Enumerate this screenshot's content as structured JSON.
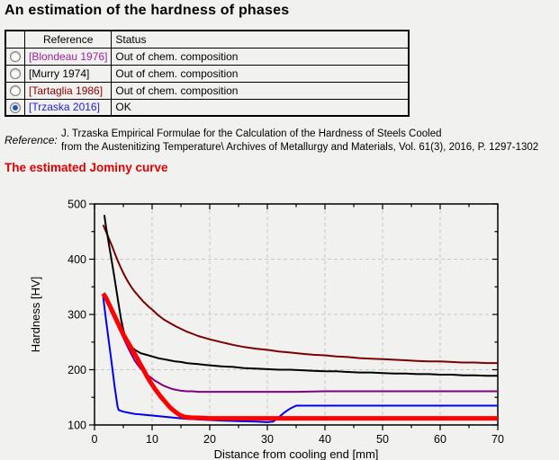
{
  "page": {
    "title": "An estimation of the hardness of phases"
  },
  "table": {
    "headers": [
      "",
      "Reference",
      "Status"
    ],
    "rows": [
      {
        "reference": "[Blondeau 1976]",
        "status": "Out of chem. composition",
        "color": "#a020a0",
        "selected": false
      },
      {
        "reference": "[Murry 1974]",
        "status": "Out of chem. composition",
        "color": "#000000",
        "selected": false
      },
      {
        "reference": "[Tartaglia 1986]",
        "status": "Out of chem. composition",
        "color": "#8b0000",
        "selected": false
      },
      {
        "reference": "[Trzaska 2016]",
        "status": "OK",
        "color": "#2222cc",
        "selected": true
      }
    ]
  },
  "reference_section": {
    "label": "Reference:",
    "line1": "J. Trzaska Empirical Formulae for the Calculation of the Hardness of Steels Cooled",
    "line2": "from the Austenitizing Temperature\\ Archives of Metallurgy and Materials, Vol. 61(3), 2016, P. 1297-1302"
  },
  "section_heading": {
    "text": "The estimated Jominy curve",
    "color": "#e00000"
  },
  "chart_data": {
    "type": "line",
    "title": "",
    "xlabel": "Distance from cooling end [mm]",
    "ylabel": "Hardness [HV]",
    "xlim": [
      0,
      70
    ],
    "ylim": [
      100,
      500
    ],
    "x_major_ticks": [
      0,
      10,
      20,
      30,
      40,
      50,
      60,
      70
    ],
    "x_minor_ticks": [
      5,
      15,
      25,
      35,
      45,
      55,
      65
    ],
    "y_major_ticks": [
      100,
      200,
      300,
      400,
      500
    ],
    "y_minor_ticks": [
      150,
      250,
      350,
      450
    ],
    "grid": "dashed",
    "grid_color": "#c8c8c8",
    "legend": "none",
    "series": [
      {
        "name": "Tartaglia 1986",
        "color": "#7b0000",
        "width": 2,
        "points": [
          [
            1.5,
            462
          ],
          [
            2,
            450
          ],
          [
            2.5,
            437
          ],
          [
            3,
            425
          ],
          [
            3.5,
            411
          ],
          [
            4,
            398
          ],
          [
            4.5,
            386
          ],
          [
            5,
            375
          ],
          [
            5.5,
            365
          ],
          [
            6,
            356
          ],
          [
            6.5,
            348
          ],
          [
            7,
            341
          ],
          [
            7.5,
            335
          ],
          [
            8,
            329
          ],
          [
            8.5,
            323
          ],
          [
            9,
            318
          ],
          [
            9.5,
            313
          ],
          [
            10,
            309
          ],
          [
            11,
            299
          ],
          [
            12,
            291
          ],
          [
            13,
            285
          ],
          [
            14,
            279
          ],
          [
            15,
            274
          ],
          [
            16,
            269
          ],
          [
            17,
            265
          ],
          [
            18,
            261
          ],
          [
            19,
            258
          ],
          [
            20,
            255
          ],
          [
            22,
            250
          ],
          [
            24,
            245
          ],
          [
            26,
            241
          ],
          [
            28,
            238
          ],
          [
            30,
            236
          ],
          [
            32,
            233
          ],
          [
            34,
            231
          ],
          [
            36,
            229
          ],
          [
            38,
            227
          ],
          [
            40,
            226
          ],
          [
            42,
            224
          ],
          [
            44,
            223
          ],
          [
            46,
            221
          ],
          [
            48,
            220
          ],
          [
            50,
            219
          ],
          [
            52,
            218
          ],
          [
            54,
            217
          ],
          [
            56,
            216
          ],
          [
            58,
            215
          ],
          [
            60,
            215
          ],
          [
            62,
            214
          ],
          [
            64,
            213
          ],
          [
            66,
            213
          ],
          [
            68,
            212
          ],
          [
            70,
            212
          ]
        ]
      },
      {
        "name": "Murry 1974",
        "color": "#000000",
        "width": 2,
        "points": [
          [
            1.7,
            480
          ],
          [
            2,
            458
          ],
          [
            2.3,
            440
          ],
          [
            2.6,
            421
          ],
          [
            3,
            396
          ],
          [
            3.4,
            370
          ],
          [
            3.8,
            344
          ],
          [
            4.2,
            317
          ],
          [
            4.6,
            292
          ],
          [
            5,
            272
          ],
          [
            5.4,
            258
          ],
          [
            5.8,
            249
          ],
          [
            6.2,
            244
          ],
          [
            6.6,
            240
          ],
          [
            7,
            236
          ],
          [
            7.5,
            233
          ],
          [
            8,
            230
          ],
          [
            9,
            227
          ],
          [
            10,
            224
          ],
          [
            11,
            221
          ],
          [
            12,
            219
          ],
          [
            13,
            217
          ],
          [
            14,
            215
          ],
          [
            15,
            214
          ],
          [
            16,
            212
          ],
          [
            17,
            211
          ],
          [
            18,
            210
          ],
          [
            19,
            209
          ],
          [
            20,
            208
          ],
          [
            22,
            206
          ],
          [
            24,
            205
          ],
          [
            26,
            203
          ],
          [
            28,
            202
          ],
          [
            30,
            201
          ],
          [
            32,
            200
          ],
          [
            34,
            200
          ],
          [
            36,
            199
          ],
          [
            38,
            198
          ],
          [
            40,
            197
          ],
          [
            42,
            197
          ],
          [
            44,
            196
          ],
          [
            46,
            195
          ],
          [
            48,
            195
          ],
          [
            50,
            194
          ],
          [
            52,
            193
          ],
          [
            54,
            193
          ],
          [
            56,
            192
          ],
          [
            58,
            192
          ],
          [
            60,
            191
          ],
          [
            62,
            191
          ],
          [
            64,
            190
          ],
          [
            66,
            190
          ],
          [
            68,
            189
          ],
          [
            70,
            189
          ]
        ]
      },
      {
        "name": "Blondeau 1976",
        "color": "#800080",
        "width": 2,
        "points": [
          [
            1.5,
            335
          ],
          [
            2,
            325
          ],
          [
            2.5,
            314
          ],
          [
            3,
            302
          ],
          [
            3.5,
            291
          ],
          [
            4,
            280
          ],
          [
            4.5,
            269
          ],
          [
            5,
            258
          ],
          [
            5.5,
            247
          ],
          [
            6,
            236
          ],
          [
            6.5,
            226
          ],
          [
            7,
            216
          ],
          [
            7.5,
            209
          ],
          [
            8,
            202
          ],
          [
            8.5,
            197
          ],
          [
            9,
            192
          ],
          [
            9.5,
            188
          ],
          [
            10,
            184
          ],
          [
            10.5,
            180
          ],
          [
            11,
            177
          ],
          [
            11.5,
            174
          ],
          [
            12,
            171
          ],
          [
            12.5,
            169
          ],
          [
            13,
            167
          ],
          [
            13.5,
            165
          ],
          [
            14,
            164
          ],
          [
            14.5,
            163
          ],
          [
            15,
            162
          ],
          [
            16,
            161
          ],
          [
            17,
            161
          ],
          [
            18,
            160
          ],
          [
            20,
            160
          ],
          [
            25,
            160
          ],
          [
            30,
            160
          ],
          [
            35,
            160
          ],
          [
            40,
            161
          ],
          [
            45,
            161
          ],
          [
            50,
            161
          ],
          [
            55,
            161
          ],
          [
            60,
            161
          ],
          [
            65,
            161
          ],
          [
            70,
            161
          ]
        ]
      },
      {
        "name": "Trzaska 2016",
        "color": "#0000ee",
        "width": 2,
        "points": [
          [
            1.5,
            332
          ],
          [
            2,
            290
          ],
          [
            2.5,
            250
          ],
          [
            3,
            210
          ],
          [
            3.5,
            169
          ],
          [
            4,
            133
          ],
          [
            4.2,
            127
          ],
          [
            5,
            124
          ],
          [
            6,
            122
          ],
          [
            7,
            120
          ],
          [
            8,
            119
          ],
          [
            10,
            117
          ],
          [
            12,
            115
          ],
          [
            14,
            113
          ],
          [
            16,
            111
          ],
          [
            18,
            110
          ],
          [
            20,
            109
          ],
          [
            22,
            108
          ],
          [
            25,
            107
          ],
          [
            28,
            106
          ],
          [
            30,
            105
          ],
          [
            31,
            106
          ],
          [
            32,
            114
          ],
          [
            33,
            123
          ],
          [
            34,
            130
          ],
          [
            35,
            135
          ],
          [
            40,
            135
          ],
          [
            45,
            135
          ],
          [
            50,
            135
          ],
          [
            55,
            135
          ],
          [
            60,
            135
          ],
          [
            65,
            135
          ],
          [
            70,
            135
          ]
        ]
      },
      {
        "name": "Estimated Jominy curve",
        "color": "#ff0000",
        "width": 5,
        "points": [
          [
            1.5,
            338
          ],
          [
            2,
            330
          ],
          [
            2.5,
            319
          ],
          [
            3,
            308
          ],
          [
            3.5,
            297
          ],
          [
            4,
            286
          ],
          [
            4.5,
            275
          ],
          [
            5,
            264
          ],
          [
            5.5,
            255
          ],
          [
            6,
            246
          ],
          [
            6.5,
            237
          ],
          [
            7,
            228
          ],
          [
            7.5,
            219
          ],
          [
            8,
            209
          ],
          [
            8.5,
            200
          ],
          [
            9,
            190
          ],
          [
            9.5,
            181
          ],
          [
            10,
            173
          ],
          [
            10.5,
            165
          ],
          [
            11,
            158
          ],
          [
            11.5,
            151
          ],
          [
            12,
            145
          ],
          [
            12.5,
            139
          ],
          [
            13,
            133
          ],
          [
            13.5,
            128
          ],
          [
            14,
            124
          ],
          [
            14.5,
            120
          ],
          [
            15,
            117
          ],
          [
            15.5,
            115
          ],
          [
            16,
            114
          ],
          [
            17,
            113
          ],
          [
            18,
            113
          ],
          [
            20,
            112
          ],
          [
            25,
            112
          ],
          [
            30,
            112
          ],
          [
            35,
            112
          ],
          [
            40,
            112
          ],
          [
            45,
            112
          ],
          [
            50,
            112
          ],
          [
            55,
            112
          ],
          [
            60,
            112
          ],
          [
            65,
            112
          ],
          [
            70,
            112
          ]
        ]
      }
    ]
  }
}
